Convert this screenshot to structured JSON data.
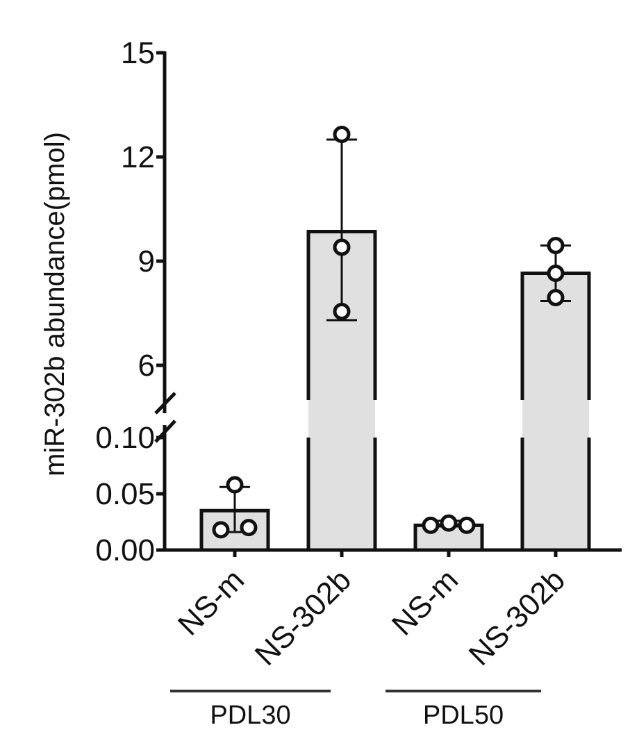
{
  "chart_data": {
    "type": "bar",
    "ylabel": "miR-302b abundance(pmol)",
    "y_axis": {
      "broken": true,
      "lower_segment": {
        "range": [
          0,
          0.1
        ],
        "ticks": [
          "0.00",
          "0.05",
          "0.10"
        ],
        "tick_values": [
          0,
          0.05,
          0.1
        ]
      },
      "upper_segment": {
        "range": [
          5,
          15
        ],
        "ticks": [
          "6",
          "9",
          "12",
          "15"
        ],
        "tick_values": [
          6,
          9,
          12,
          15
        ]
      }
    },
    "categories": [
      "NS-m",
      "NS-302b",
      "NS-m",
      "NS-302b"
    ],
    "groups": [
      {
        "label": "PDL30",
        "categories": [
          0,
          1
        ]
      },
      {
        "label": "PDL50",
        "categories": [
          2,
          3
        ]
      }
    ],
    "values": [
      0.035,
      9.85,
      0.022,
      8.65
    ],
    "error_low": [
      0.016,
      7.3,
      0.021,
      7.85
    ],
    "error_high": [
      0.056,
      12.5,
      0.026,
      9.45
    ],
    "points": [
      [
        0.058,
        0.018,
        0.02
      ],
      [
        12.65,
        9.4,
        7.55
      ],
      [
        0.022,
        0.024,
        0.022
      ],
      [
        9.45,
        8.65,
        7.95
      ]
    ],
    "bar_color": "#e0e0e0",
    "edge_color": "#111111"
  }
}
